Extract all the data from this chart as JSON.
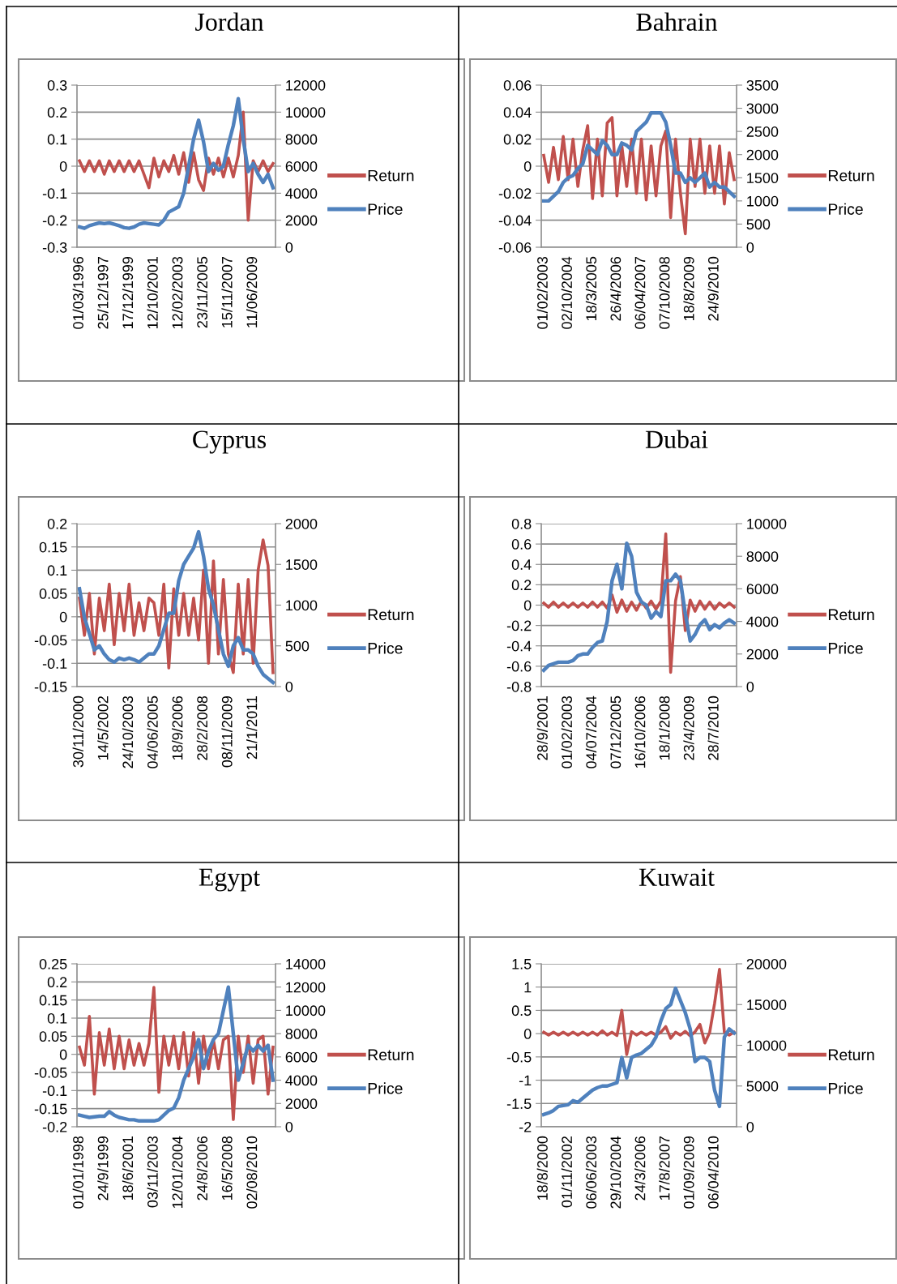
{
  "chart_data": [
    {
      "type": "line",
      "title": "Jordan",
      "grid": "y",
      "legend": "right",
      "ylim": [
        -0.3,
        0.3
      ],
      "yticks": [
        -0.3,
        -0.2,
        -0.1,
        0,
        0.1,
        0.2,
        0.3
      ],
      "y2lim": [
        0,
        12000
      ],
      "y2ticks": [
        0,
        2000,
        4000,
        6000,
        8000,
        10000,
        12000
      ],
      "categories": [
        "01/03/1996",
        null,
        null,
        null,
        null,
        "25/12/1997",
        null,
        null,
        null,
        null,
        "17/12/1999",
        null,
        null,
        null,
        null,
        "12/10/2001",
        null,
        null,
        null,
        null,
        "12/02/2003",
        null,
        null,
        null,
        null,
        "23/11/2005",
        null,
        null,
        null,
        null,
        "15/11/2007",
        null,
        null,
        null,
        null,
        "11/06/2009",
        null,
        null,
        null,
        null
      ],
      "series": [
        {
          "name": "Return",
          "color": "#c0504d",
          "axis": "y",
          "values": [
            0.02,
            -0.02,
            0.02,
            -0.02,
            0.02,
            -0.03,
            0.02,
            -0.02,
            0.02,
            -0.02,
            0.02,
            -0.02,
            0.02,
            -0.03,
            -0.08,
            0.03,
            -0.04,
            0.02,
            -0.02,
            0.04,
            -0.03,
            0.05,
            -0.06,
            0.05,
            -0.05,
            -0.09,
            0.03,
            -0.03,
            0.03,
            -0.04,
            0.03,
            -0.04,
            0.04,
            0.2,
            -0.2,
            0.02,
            -0.02,
            0.02,
            -0.02,
            0.01
          ]
        },
        {
          "name": "Price",
          "color": "#4f81bd",
          "axis": "y2",
          "values": [
            1500,
            1400,
            1600,
            1700,
            1800,
            1750,
            1800,
            1700,
            1600,
            1450,
            1400,
            1500,
            1700,
            1800,
            1750,
            1700,
            1650,
            2000,
            2600,
            2800,
            3000,
            4000,
            6000,
            8000,
            9400,
            7800,
            5600,
            6200,
            5700,
            6000,
            7600,
            9000,
            11000,
            8000,
            5600,
            6200,
            5400,
            4800,
            5400,
            4400
          ]
        }
      ]
    },
    {
      "type": "line",
      "title": "Bahrain",
      "grid": "y",
      "legend": "right",
      "ylim": [
        -0.06,
        0.06
      ],
      "yticks": [
        -0.06,
        -0.04,
        -0.02,
        0,
        0.02,
        0.04,
        0.06
      ],
      "y2lim": [
        0,
        3500
      ],
      "y2ticks": [
        0,
        500,
        1000,
        1500,
        2000,
        2500,
        3000,
        3500
      ],
      "categories": [
        "01/02/2003",
        null,
        null,
        null,
        null,
        "02/10/2004",
        null,
        null,
        null,
        null,
        "18/3/2005",
        null,
        null,
        null,
        null,
        "26/4/2006",
        null,
        null,
        null,
        null,
        "06/04/2007",
        null,
        null,
        null,
        null,
        "07/10/2008",
        null,
        null,
        null,
        null,
        "18/8/2009",
        null,
        null,
        null,
        null,
        "24/9/2010",
        null,
        null,
        null,
        null
      ],
      "series": [
        {
          "name": "Return",
          "color": "#c0504d",
          "axis": "y",
          "values": [
            0.008,
            -0.012,
            0.014,
            -0.01,
            0.022,
            -0.01,
            0.02,
            -0.015,
            0.012,
            0.03,
            -0.024,
            0.02,
            -0.022,
            0.032,
            0.036,
            -0.022,
            0.015,
            -0.015,
            0.02,
            -0.02,
            0.02,
            -0.025,
            0.015,
            -0.022,
            0.015,
            0.026,
            -0.038,
            0.02,
            -0.02,
            -0.05,
            0.02,
            -0.015,
            0.02,
            -0.02,
            0.015,
            -0.02,
            0.015,
            -0.028,
            0.01,
            -0.01
          ]
        },
        {
          "name": "Price",
          "color": "#4f81bd",
          "axis": "y2",
          "values": [
            1000,
            1000,
            1100,
            1200,
            1400,
            1500,
            1550,
            1700,
            1800,
            2200,
            2100,
            2000,
            2300,
            2200,
            2000,
            2000,
            2250,
            2200,
            2100,
            2500,
            2600,
            2700,
            2900,
            2900,
            2900,
            2700,
            2200,
            1600,
            1600,
            1400,
            1500,
            1400,
            1500,
            1600,
            1300,
            1400,
            1300,
            1300,
            1200,
            1100
          ]
        }
      ]
    },
    {
      "type": "line",
      "title": "Cyprus",
      "grid": "y",
      "legend": "right",
      "ylim": [
        -0.15,
        0.2
      ],
      "yticks": [
        -0.15,
        -0.1,
        -0.05,
        0,
        0.05,
        0.1,
        0.15,
        0.2
      ],
      "y2lim": [
        0,
        2000
      ],
      "y2ticks": [
        0,
        500,
        1000,
        1500,
        2000
      ],
      "categories": [
        "30/11/2000",
        null,
        null,
        null,
        null,
        "14/5/2002",
        null,
        null,
        null,
        null,
        "24/10/2003",
        null,
        null,
        null,
        null,
        "04/06/2005",
        null,
        null,
        null,
        null,
        "18/9/2006",
        null,
        null,
        null,
        null,
        "28/2/2008",
        null,
        null,
        null,
        null,
        "08/11/2009",
        null,
        null,
        null,
        null,
        "21/1/2011",
        null,
        null,
        null,
        null
      ],
      "series": [
        {
          "name": "Return",
          "color": "#c0504d",
          "axis": "y",
          "values": [
            0.04,
            -0.04,
            0.05,
            -0.08,
            0.04,
            -0.03,
            0.07,
            -0.06,
            0.05,
            -0.03,
            0.07,
            -0.04,
            0.03,
            -0.03,
            0.04,
            0.03,
            -0.04,
            0.07,
            -0.11,
            0.06,
            -0.04,
            0.05,
            -0.04,
            0.04,
            -0.05,
            0.1,
            -0.1,
            0.12,
            -0.08,
            0.08,
            -0.08,
            -0.12,
            0.07,
            -0.08,
            0.08,
            -0.1,
            0.1,
            0.165,
            0.11,
            -0.12
          ]
        },
        {
          "name": "Price",
          "color": "#4f81bd",
          "axis": "y2",
          "values": [
            1200,
            850,
            650,
            450,
            500,
            400,
            330,
            300,
            350,
            330,
            350,
            330,
            300,
            350,
            400,
            400,
            500,
            700,
            900,
            900,
            1300,
            1500,
            1600,
            1700,
            1900,
            1600,
            1200,
            1000,
            700,
            400,
            250,
            500,
            600,
            450,
            450,
            400,
            250,
            150,
            100,
            50
          ]
        }
      ]
    },
    {
      "type": "line",
      "title": "Dubai",
      "grid": "y",
      "legend": "right",
      "ylim": [
        -0.8,
        0.8
      ],
      "yticks": [
        -0.8,
        -0.6,
        -0.4,
        -0.2,
        0,
        0.2,
        0.4,
        0.6,
        0.8
      ],
      "y2lim": [
        0,
        10000
      ],
      "y2ticks": [
        0,
        2000,
        4000,
        6000,
        8000,
        10000
      ],
      "categories": [
        "28/9/2001",
        null,
        null,
        null,
        null,
        "01/02/2003",
        null,
        null,
        null,
        null,
        "04/07/2004",
        null,
        null,
        null,
        null,
        "07/12/2005",
        null,
        null,
        null,
        null,
        "16/10/2006",
        null,
        null,
        null,
        null,
        "18/1/2008",
        null,
        null,
        null,
        null,
        "23/4/2009",
        null,
        null,
        null,
        null,
        "28/7/2010",
        null,
        null,
        null,
        null
      ],
      "series": [
        {
          "name": "Return",
          "color": "#c0504d",
          "axis": "y",
          "values": [
            0.02,
            -0.02,
            0.03,
            -0.02,
            0.02,
            -0.02,
            0.02,
            -0.02,
            0.02,
            -0.02,
            0.03,
            -0.02,
            0.03,
            -0.03,
            0.1,
            -0.07,
            0.05,
            -0.06,
            0.03,
            -0.05,
            0.04,
            -0.03,
            0.04,
            -0.04,
            0.04,
            0.7,
            -0.66,
            0.04,
            0.28,
            -0.25,
            0.05,
            -0.06,
            0.04,
            -0.04,
            0.03,
            -0.04,
            0.02,
            -0.02,
            0.02,
            -0.02
          ]
        },
        {
          "name": "Price",
          "color": "#4f81bd",
          "axis": "y2",
          "values": [
            1000,
            1300,
            1400,
            1500,
            1500,
            1500,
            1600,
            1900,
            2000,
            2000,
            2400,
            2700,
            2800,
            4000,
            6500,
            7500,
            6000,
            8800,
            8000,
            5800,
            5200,
            5000,
            4200,
            4600,
            4300,
            6500,
            6500,
            6900,
            6500,
            4500,
            2800,
            3200,
            3800,
            4100,
            3500,
            3800,
            3600,
            3900,
            4100,
            3900
          ]
        }
      ]
    },
    {
      "type": "line",
      "title": "Egypt",
      "grid": "y",
      "legend": "right",
      "ylim": [
        -0.2,
        0.25
      ],
      "yticks": [
        -0.2,
        -0.15,
        -0.1,
        -0.05,
        0,
        0.05,
        0.1,
        0.15,
        0.2,
        0.25
      ],
      "y2lim": [
        0,
        14000
      ],
      "y2ticks": [
        0,
        2000,
        4000,
        6000,
        8000,
        10000,
        12000,
        14000
      ],
      "categories": [
        "01/01/1998",
        null,
        null,
        null,
        null,
        "24/9/1999",
        null,
        null,
        null,
        null,
        "18/6/2001",
        null,
        null,
        null,
        null,
        "03/11/2003",
        null,
        null,
        null,
        null,
        "12/01/2004",
        null,
        null,
        null,
        null,
        "24/8/2006",
        null,
        null,
        null,
        null,
        "16/5/2008",
        null,
        null,
        null,
        null,
        "02/08/2010",
        null,
        null,
        null,
        null
      ],
      "series": [
        {
          "name": "Return",
          "color": "#c0504d",
          "axis": "y",
          "values": [
            0.02,
            -0.03,
            0.105,
            -0.11,
            0.06,
            -0.03,
            0.07,
            -0.04,
            0.05,
            -0.04,
            0.04,
            -0.03,
            0.03,
            -0.03,
            0.03,
            0.185,
            -0.105,
            0.05,
            -0.03,
            0.05,
            -0.04,
            0.06,
            -0.06,
            0.06,
            -0.08,
            0.05,
            -0.04,
            0.04,
            -0.04,
            0.04,
            0.05,
            -0.18,
            0.05,
            -0.05,
            0.05,
            -0.08,
            0.04,
            0.05,
            -0.11,
            0.02
          ]
        },
        {
          "name": "Price",
          "color": "#4f81bd",
          "axis": "y2",
          "values": [
            1000,
            900,
            800,
            850,
            900,
            900,
            1300,
            1000,
            800,
            700,
            600,
            600,
            500,
            500,
            500,
            500,
            600,
            1000,
            1400,
            1600,
            2500,
            4000,
            5000,
            6000,
            7500,
            5000,
            6500,
            7500,
            8000,
            10000,
            12000,
            8000,
            4000,
            5500,
            7000,
            6500,
            7000,
            6500,
            7000,
            4000
          ]
        }
      ]
    },
    {
      "type": "line",
      "title": "Kuwait",
      "grid": "y",
      "legend": "right",
      "ylim": [
        -2,
        1.5
      ],
      "yticks": [
        -2,
        -1.5,
        -1,
        -0.5,
        0,
        0.5,
        1,
        1.5
      ],
      "y2lim": [
        0,
        20000
      ],
      "y2ticks": [
        0,
        5000,
        10000,
        15000,
        20000
      ],
      "categories": [
        "18/8/2000",
        null,
        null,
        null,
        null,
        "01/11/2002",
        null,
        null,
        null,
        null,
        "06/06/2003",
        null,
        null,
        null,
        null,
        "29/10/2004",
        null,
        null,
        null,
        null,
        "24/3/2006",
        null,
        null,
        null,
        null,
        "17/8/2007",
        null,
        null,
        null,
        null,
        "01/09/2009",
        null,
        null,
        null,
        null,
        "06/04/2010",
        null,
        null,
        null,
        null
      ],
      "series": [
        {
          "name": "Return",
          "color": "#c0504d",
          "axis": "y",
          "values": [
            0.03,
            -0.03,
            0.03,
            -0.03,
            0.03,
            -0.03,
            0.03,
            -0.03,
            0.03,
            -0.03,
            0.03,
            -0.03,
            0.06,
            -0.03,
            0.03,
            -0.04,
            0.5,
            -0.45,
            0.04,
            -0.03,
            0.03,
            -0.03,
            0.03,
            -0.03,
            0.03,
            0.15,
            -0.1,
            0.03,
            -0.03,
            0.05,
            -0.05,
            0.04,
            0.2,
            -0.2,
            0.03,
            0.65,
            1.38,
            0.03,
            -0.03,
            0.03
          ]
        },
        {
          "name": "Price",
          "color": "#4f81bd",
          "axis": "y2",
          "values": [
            1500,
            1700,
            2000,
            2500,
            2600,
            2700,
            3200,
            3000,
            3500,
            4000,
            4500,
            4800,
            5000,
            5000,
            5200,
            5400,
            8500,
            6000,
            8500,
            8800,
            9000,
            9500,
            10000,
            11000,
            13000,
            14500,
            15000,
            17000,
            15500,
            14000,
            12000,
            8000,
            8500,
            8500,
            8000,
            4500,
            2500,
            11000,
            12000,
            11500
          ]
        }
      ]
    }
  ]
}
